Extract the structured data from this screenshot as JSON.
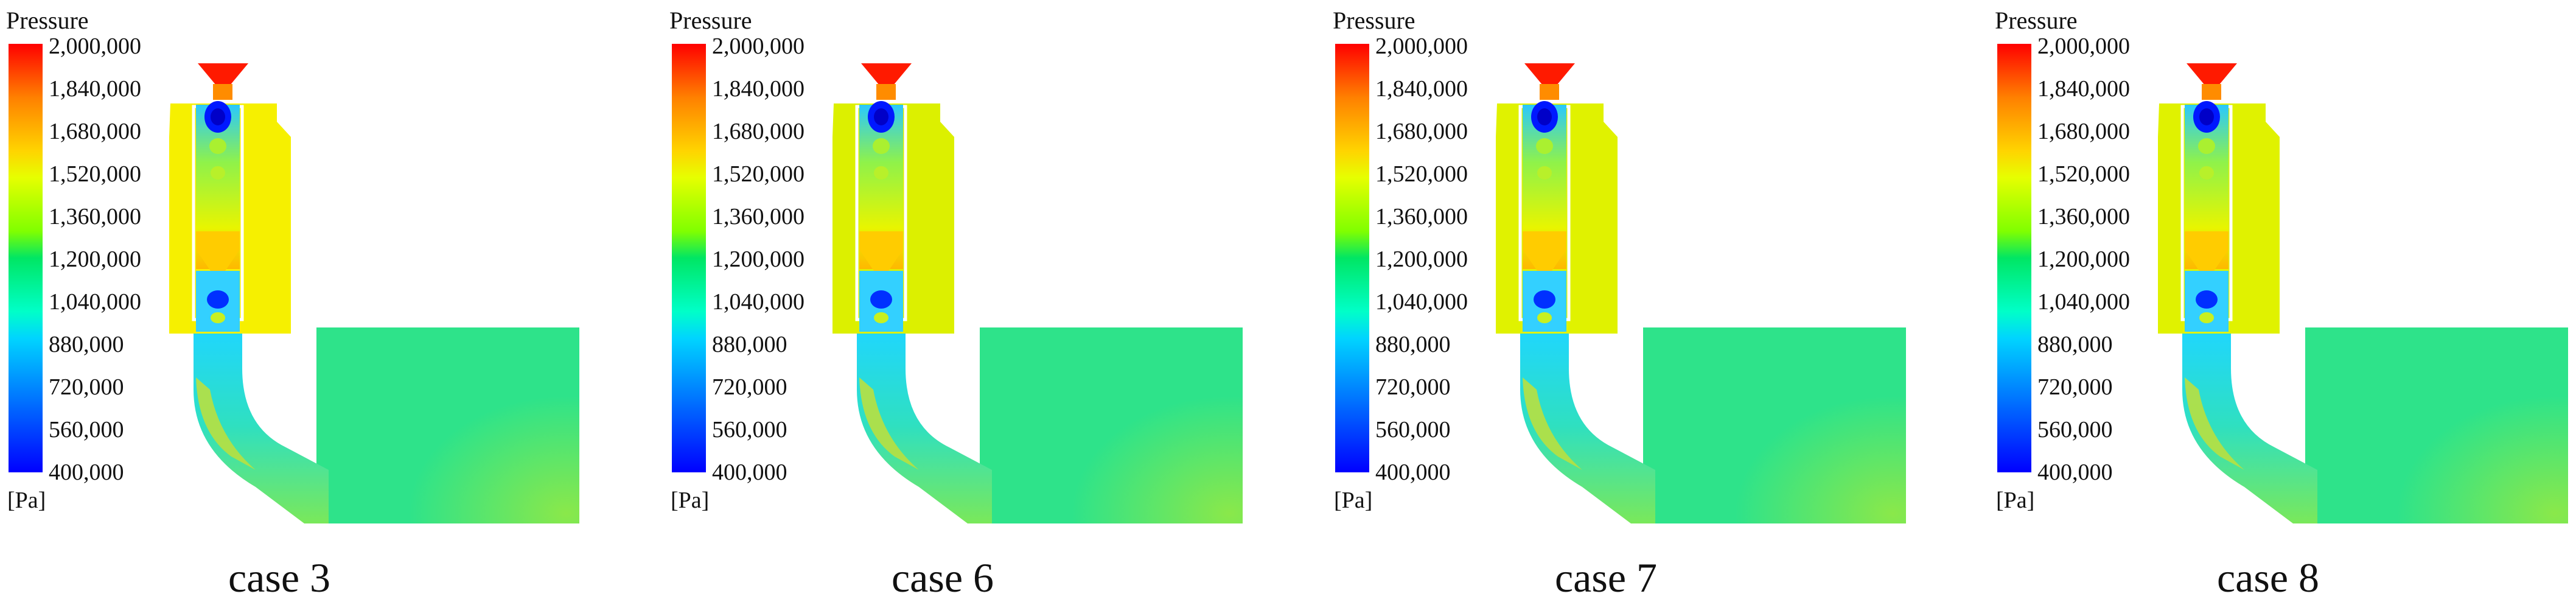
{
  "legend": {
    "title": "Pressure",
    "unit": "[Pa]",
    "ticks": [
      "2,000,000",
      "1,840,000",
      "1,680,000",
      "1,520,000",
      "1,360,000",
      "1,200,000",
      "1,040,000",
      "880,000",
      "720,000",
      "560,000",
      "400,000"
    ],
    "min": 400000,
    "max": 2000000
  },
  "panels": [
    {
      "caption": "case 3",
      "fitting_level": 1520000
    },
    {
      "caption": "case 6",
      "fitting_level": 1420000
    },
    {
      "caption": "case 7",
      "fitting_level": 1440000
    },
    {
      "caption": "case 8",
      "fitting_level": 1440000
    }
  ],
  "colors": {
    "max": "#ff0000",
    "min": "#0000ff",
    "fitting": "#f2f000",
    "outlet": "#22e68a",
    "duct": "#3de0b0"
  }
}
